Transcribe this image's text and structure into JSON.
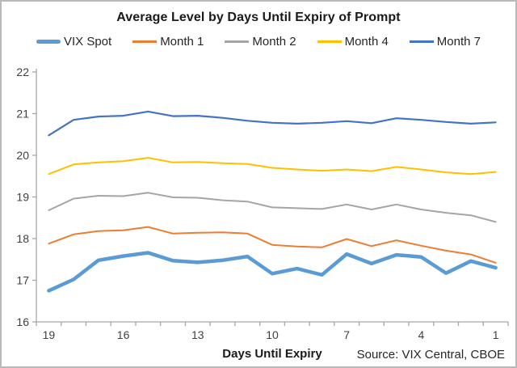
{
  "title": "Average Level by Days Until Expiry of Prompt",
  "source": "Source: VIX Central, CBOE",
  "colors": {
    "axis": "#a6a6a6",
    "tick_label": "#404040",
    "title_text": "#1a1a1a",
    "border": "#b9b9b9",
    "background": "#ffffff"
  },
  "chart_data": {
    "type": "line",
    "title": "Average Level by Days Until Expiry of Prompt",
    "xlabel": "Days Until Expiry",
    "ylabel": "",
    "x": [
      19,
      18,
      17,
      16,
      15,
      14,
      13,
      12,
      11,
      10,
      9,
      8,
      7,
      6,
      5,
      4,
      3,
      2,
      1
    ],
    "x_axis_reversed": true,
    "x_tick_labels": [
      "19",
      "16",
      "13",
      "10",
      "7",
      "4",
      "1"
    ],
    "ylim": [
      16,
      22
    ],
    "y_ticks": [
      16,
      17,
      18,
      19,
      20,
      21,
      22
    ],
    "grid": false,
    "legend_position": "top",
    "series": [
      {
        "name": "VIX Spot",
        "color": "#5B9BD5",
        "stroke_width": 4.5,
        "values": [
          16.75,
          17.02,
          17.48,
          17.58,
          17.66,
          17.47,
          17.43,
          17.48,
          17.57,
          17.16,
          17.28,
          17.13,
          17.63,
          17.4,
          17.61,
          17.56,
          17.17,
          17.46,
          17.3
        ]
      },
      {
        "name": "Month 1",
        "color": "#ED7D31",
        "stroke_width": 2,
        "values": [
          17.88,
          18.1,
          18.18,
          18.2,
          18.28,
          18.12,
          18.14,
          18.15,
          18.12,
          17.85,
          17.81,
          17.79,
          17.99,
          17.82,
          17.96,
          17.83,
          17.71,
          17.62,
          17.42
        ]
      },
      {
        "name": "Month 2",
        "color": "#A5A5A5",
        "stroke_width": 2,
        "values": [
          18.68,
          18.96,
          19.03,
          19.02,
          19.1,
          18.99,
          18.98,
          18.92,
          18.89,
          18.75,
          18.73,
          18.71,
          18.82,
          18.7,
          18.82,
          18.7,
          18.62,
          18.56,
          18.4
        ]
      },
      {
        "name": "Month 4",
        "color": "#FFC000",
        "stroke_width": 2,
        "values": [
          19.55,
          19.78,
          19.83,
          19.86,
          19.94,
          19.83,
          19.84,
          19.81,
          19.79,
          19.7,
          19.66,
          19.63,
          19.66,
          19.62,
          19.72,
          19.66,
          19.59,
          19.55,
          19.6
        ]
      },
      {
        "name": "Month 7",
        "color": "#4472C4",
        "stroke_width": 2.2,
        "values": [
          20.48,
          20.85,
          20.93,
          20.95,
          21.05,
          20.94,
          20.95,
          20.9,
          20.83,
          20.78,
          20.76,
          20.78,
          20.82,
          20.77,
          20.89,
          20.85,
          20.8,
          20.76,
          20.79
        ]
      }
    ]
  }
}
